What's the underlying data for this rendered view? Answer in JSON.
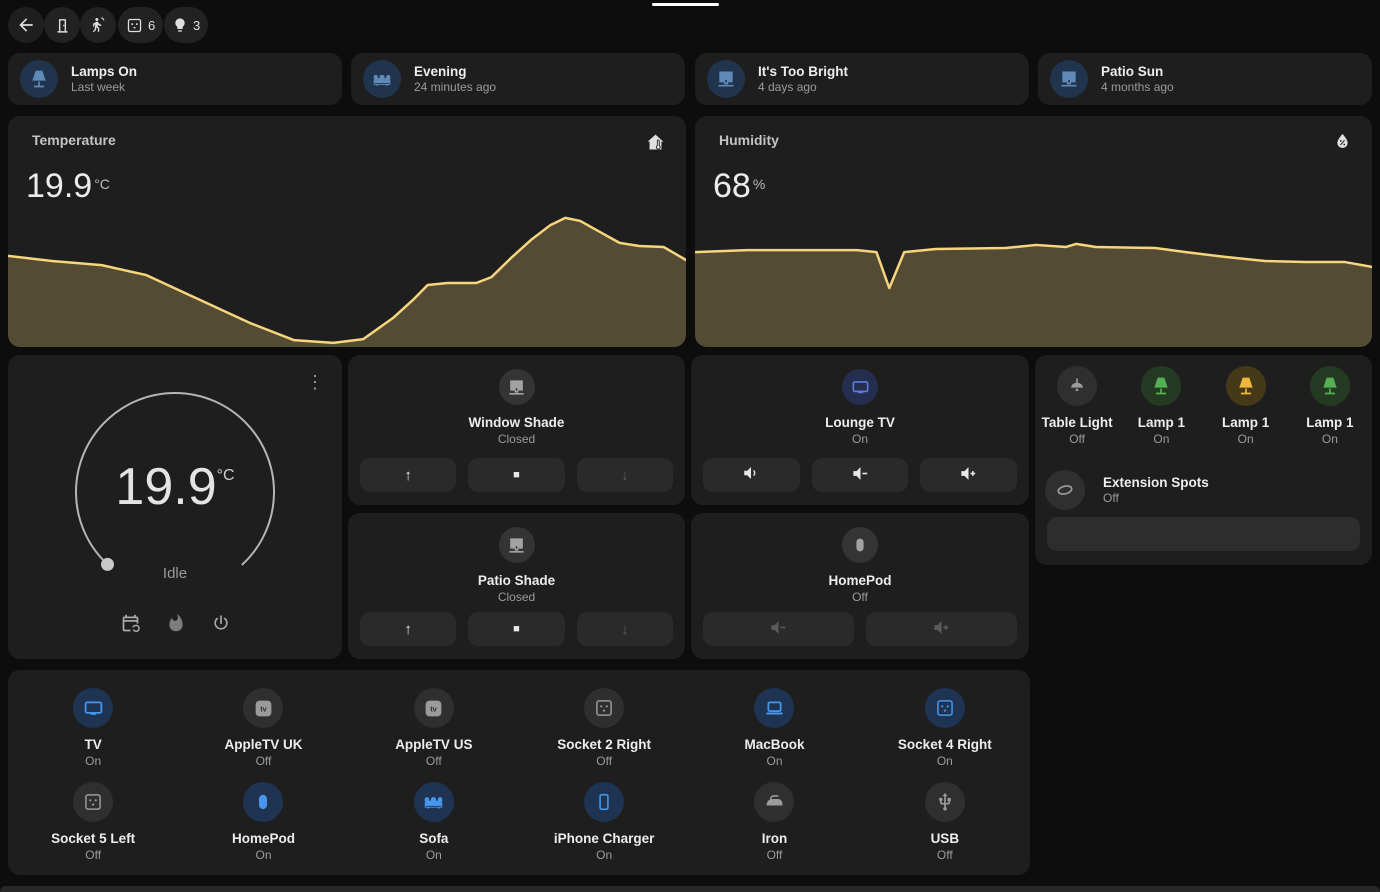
{
  "topbar": {
    "badges": {
      "sockets_count": "6",
      "lights_count": "3"
    },
    "icons": [
      "back-arrow",
      "door",
      "motion-sensor",
      "power-socket",
      "lightbulb"
    ]
  },
  "glyphs": {
    "up": "↑",
    "down": "↓",
    "stop": "■",
    "menu_dots": "⋮",
    "appletv_label": "tv"
  },
  "scenes": [
    {
      "name": "Lamps On",
      "time": "Last week",
      "icon": "lamp"
    },
    {
      "name": "Evening",
      "time": "24 minutes ago",
      "icon": "sofa"
    },
    {
      "name": "It's Too Bright",
      "time": "4 days ago",
      "icon": "roller-shade"
    },
    {
      "name": "Patio Sun",
      "time": "4 months ago",
      "icon": "roller-shade"
    }
  ],
  "sensors": {
    "temperature": {
      "title": "Temperature",
      "value": "19.9",
      "unit": "°C",
      "icon": "home-thermometer"
    },
    "humidity": {
      "title": "Humidity",
      "value": "68",
      "unit": "%",
      "icon": "water-percent"
    }
  },
  "thermostat": {
    "value": "19.9",
    "unit": "°C",
    "status": "Idle",
    "modes": [
      "schedule",
      "heat",
      "off"
    ]
  },
  "covers": [
    {
      "name": "Window Shade",
      "state": "Closed",
      "buttons": [
        "open",
        "stop",
        "close"
      ],
      "close_disabled": true
    },
    {
      "name": "Patio Shade",
      "state": "Closed",
      "buttons": [
        "open",
        "stop",
        "close"
      ],
      "close_disabled": true
    }
  ],
  "media": [
    {
      "name": "Lounge TV",
      "state": "On",
      "buttons": [
        "mute",
        "volume-down",
        "volume-up"
      ]
    },
    {
      "name": "HomePod",
      "state": "Off",
      "buttons": [
        "volume-down",
        "volume-up"
      ],
      "buttons_disabled": true
    }
  ],
  "lights": {
    "tiles": [
      {
        "name": "Table Light",
        "state": "Off",
        "color": "gray",
        "icon": "ceiling-light"
      },
      {
        "name": "Lamp 1",
        "state": "On",
        "color": "green",
        "icon": "lamp"
      },
      {
        "name": "Lamp 1",
        "state": "On",
        "color": "amber",
        "icon": "lamp"
      },
      {
        "name": "Lamp 1",
        "state": "On",
        "color": "green",
        "icon": "lamp"
      }
    ],
    "extension": {
      "name": "Extension Spots",
      "state": "Off",
      "icon": "light-strip-oval"
    }
  },
  "devices": [
    {
      "name": "TV",
      "state": "On",
      "icon": "tv",
      "active": true
    },
    {
      "name": "AppleTV UK",
      "state": "Off",
      "icon": "apple-tv",
      "active": false
    },
    {
      "name": "AppleTV US",
      "state": "Off",
      "icon": "apple-tv",
      "active": false
    },
    {
      "name": "Socket 2 Right",
      "state": "Off",
      "icon": "socket",
      "active": false
    },
    {
      "name": "MacBook",
      "state": "On",
      "icon": "laptop",
      "active": true
    },
    {
      "name": "Socket 4 Right",
      "state": "On",
      "icon": "socket",
      "active": true
    },
    {
      "name": "Socket 5 Left",
      "state": "Off",
      "icon": "socket",
      "active": false
    },
    {
      "name": "HomePod",
      "state": "On",
      "icon": "homepod",
      "active": true
    },
    {
      "name": "Sofa",
      "state": "On",
      "icon": "sofa",
      "active": true
    },
    {
      "name": "iPhone Charger",
      "state": "On",
      "icon": "iphone",
      "active": true
    },
    {
      "name": "Iron",
      "state": "Off",
      "icon": "iron",
      "active": false
    },
    {
      "name": "USB",
      "state": "Off",
      "icon": "usb",
      "active": false
    }
  ],
  "colors": {
    "background": "#0d0d0d",
    "card": "#1e1e1e",
    "accent_blue": "#4596ec",
    "chart_line": "#f6d57d",
    "chart_fill": "rgba(246,213,125,0.25)",
    "green": "#55b054",
    "amber": "#efb73d",
    "text_secondary": "#9b9b9b"
  },
  "chart_data": [
    {
      "type": "area",
      "title": "Temperature",
      "unit": "°C",
      "current": 19.9,
      "axes": "none (sparkline history graph)",
      "line_color": "#f6d57d",
      "fill_color": "rgba(246,213,125,0.25)",
      "points": [
        [
          0,
          13.4
        ],
        [
          6.5,
          14.9
        ],
        [
          13.8,
          16.1
        ],
        [
          20.4,
          19
        ],
        [
          27.7,
          25.7
        ],
        [
          35.7,
          33
        ],
        [
          42.2,
          38
        ],
        [
          48,
          38.8
        ],
        [
          52.4,
          37.7
        ],
        [
          56.8,
          31.5
        ],
        [
          59.7,
          26.3
        ],
        [
          61.9,
          21.9
        ],
        [
          64.8,
          21.3
        ],
        [
          69.1,
          21.3
        ],
        [
          71.3,
          19.6
        ],
        [
          74.2,
          14
        ],
        [
          77.1,
          8.8
        ],
        [
          80,
          4.4
        ],
        [
          82.2,
          2.3
        ],
        [
          84.4,
          3.2
        ],
        [
          87.3,
          6.4
        ],
        [
          90.2,
          9.6
        ],
        [
          93.1,
          10.5
        ],
        [
          96.7,
          10.8
        ],
        [
          100,
          14.6
        ]
      ]
    },
    {
      "type": "area",
      "title": "Humidity",
      "unit": "%",
      "current": 68,
      "axes": "none (sparkline history graph)",
      "line_color": "#f6d57d",
      "fill_color": "rgba(246,213,125,0.25)",
      "points": [
        [
          0,
          12.3
        ],
        [
          7.7,
          11.7
        ],
        [
          23.9,
          11.7
        ],
        [
          26.8,
          12.3
        ],
        [
          28.7,
          22.8
        ],
        [
          30.9,
          12.3
        ],
        [
          35.6,
          11.4
        ],
        [
          45.9,
          11.1
        ],
        [
          50.4,
          10.2
        ],
        [
          54.8,
          10.8
        ],
        [
          56.3,
          9.9
        ],
        [
          59.2,
          10.8
        ],
        [
          68,
          11.1
        ],
        [
          72.5,
          12.3
        ],
        [
          78.3,
          13.7
        ],
        [
          84.2,
          14.9
        ],
        [
          90.1,
          15.2
        ],
        [
          96,
          15.2
        ],
        [
          100,
          16.6
        ]
      ]
    }
  ]
}
